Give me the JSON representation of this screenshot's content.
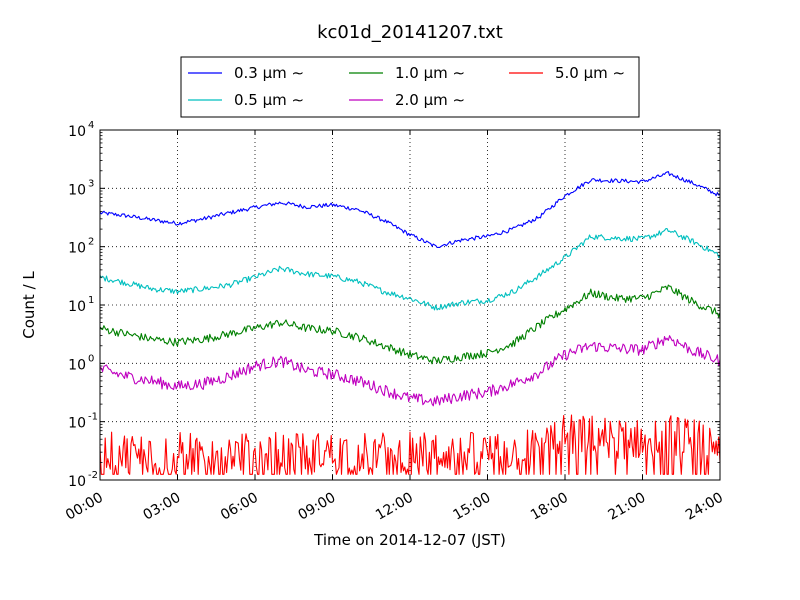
{
  "chart_data": {
    "type": "line",
    "title": "kc01d_20141207.txt",
    "xlabel": "Time on 2014-12-07 (JST)",
    "ylabel": "Count / L",
    "yscale": "log",
    "ylim": [
      0.01,
      10000
    ],
    "xlim": [
      "00:00",
      "24:00"
    ],
    "grid": true,
    "legend_position": "top-center",
    "x_ticks": [
      "00:00",
      "03:00",
      "06:00",
      "09:00",
      "12:00",
      "15:00",
      "18:00",
      "21:00",
      "24:00"
    ],
    "y_ticks": [
      {
        "base": "10",
        "exp": "-2",
        "value": 0.01
      },
      {
        "base": "10",
        "exp": "-1",
        "value": 0.1
      },
      {
        "base": "10",
        "exp": "0",
        "value": 1
      },
      {
        "base": "10",
        "exp": "1",
        "value": 10
      },
      {
        "base": "10",
        "exp": "2",
        "value": 100
      },
      {
        "base": "10",
        "exp": "3",
        "value": 1000
      },
      {
        "base": "10",
        "exp": "4",
        "value": 10000
      }
    ],
    "x_hours": [
      0,
      1,
      2,
      3,
      4,
      5,
      6,
      7,
      8,
      9,
      10,
      11,
      12,
      13,
      14,
      15,
      16,
      17,
      18,
      19,
      20,
      21,
      22,
      23,
      24
    ],
    "series": [
      {
        "name": "0.3 μm ∼",
        "color": "#0000ff",
        "values": [
          380,
          340,
          290,
          250,
          300,
          380,
          470,
          570,
          480,
          520,
          430,
          280,
          160,
          100,
          130,
          150,
          200,
          320,
          750,
          1400,
          1350,
          1300,
          1800,
          1200,
          750
        ]
      },
      {
        "name": "0.5 μm ∼",
        "color": "#00bfbf",
        "values": [
          30,
          24,
          19,
          17,
          19,
          22,
          30,
          42,
          34,
          31,
          25,
          17,
          13,
          9,
          11,
          12,
          17,
          32,
          65,
          150,
          140,
          135,
          190,
          120,
          70
        ]
      },
      {
        "name": "1.0 μm ∼",
        "color": "#008000",
        "values": [
          4.0,
          3.2,
          2.6,
          2.3,
          2.6,
          3.2,
          4.0,
          5.0,
          4.0,
          3.6,
          2.8,
          2.0,
          1.4,
          1.1,
          1.3,
          1.5,
          2.2,
          4.5,
          8.5,
          16,
          13,
          13,
          20,
          11,
          7
        ]
      },
      {
        "name": "2.0 μm ∼",
        "color": "#bf00bf",
        "values": [
          0.8,
          0.6,
          0.5,
          0.4,
          0.45,
          0.6,
          0.9,
          1.1,
          0.75,
          0.65,
          0.5,
          0.35,
          0.25,
          0.22,
          0.28,
          0.32,
          0.45,
          0.7,
          1.4,
          2.0,
          1.8,
          1.7,
          2.8,
          1.6,
          1.1
        ]
      },
      {
        "name": "5.0 μm ∼",
        "color": "#ff0000",
        "values": [
          0.03,
          0.03,
          0.03,
          0.03,
          0.03,
          0.03,
          0.03,
          0.03,
          0.03,
          0.03,
          0.03,
          0.03,
          0.03,
          0.03,
          0.03,
          0.03,
          0.03,
          0.04,
          0.06,
          0.06,
          0.05,
          0.05,
          0.06,
          0.05,
          0.04
        ]
      }
    ]
  }
}
